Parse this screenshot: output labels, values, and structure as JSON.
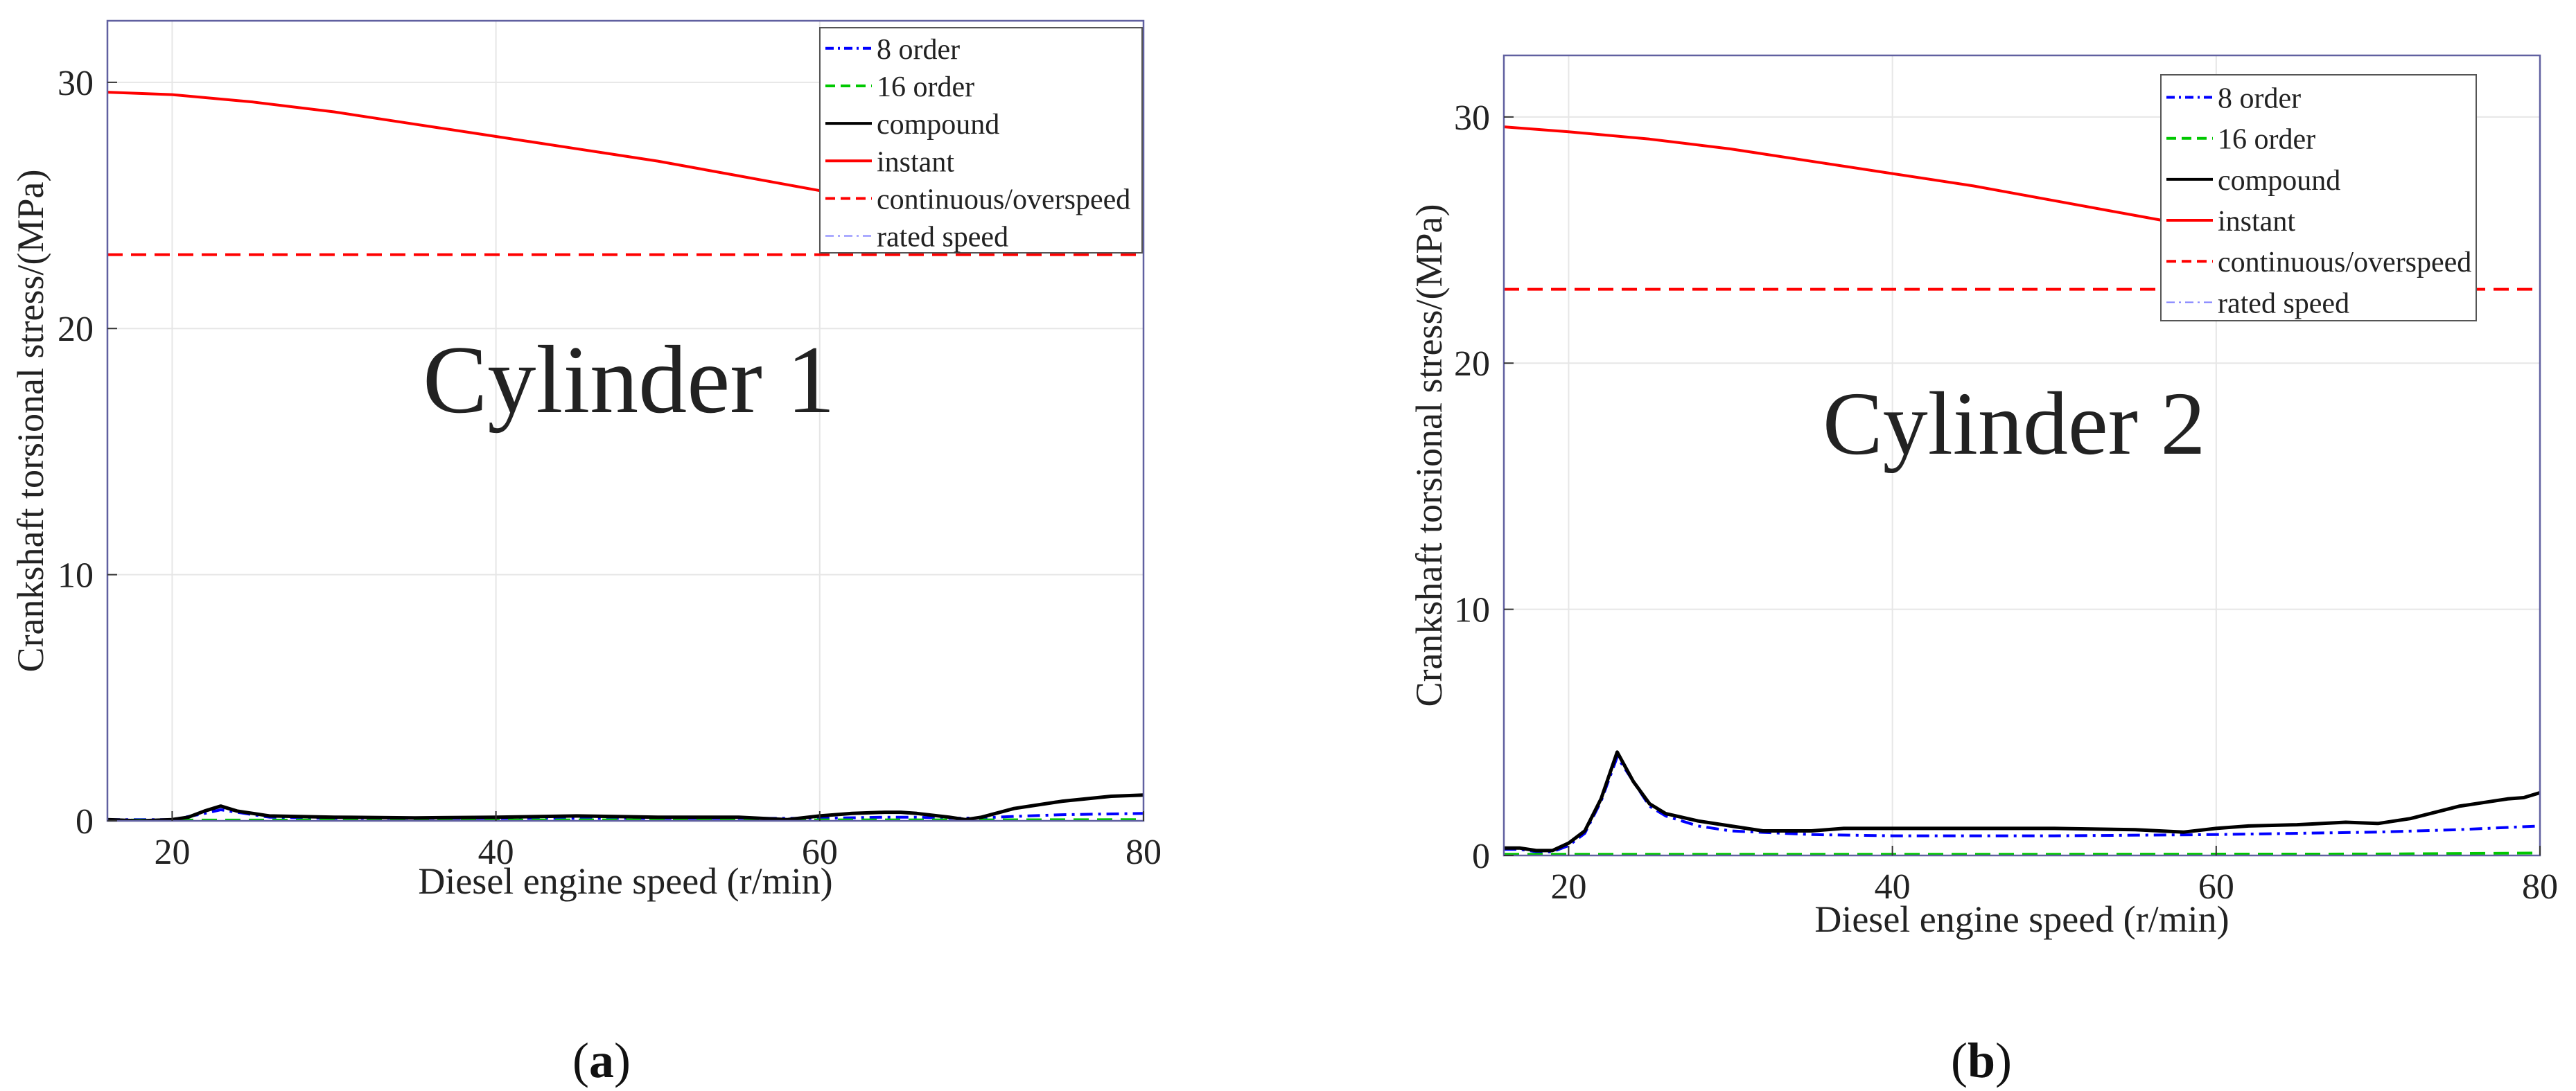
{
  "chart_data": [
    {
      "type": "line",
      "panel_label": "a",
      "annotation": "Cylinder 1",
      "xlabel": "Diesel engine speed (r/min)",
      "ylabel": "Crankshaft torsional stress/(MPa)",
      "xlim": [
        16,
        80
      ],
      "ylim": [
        0,
        32.5
      ],
      "xticks": [
        20,
        40,
        60,
        80
      ],
      "yticks": [
        0,
        10,
        20,
        30
      ],
      "grid": true,
      "legend_position": "top-right",
      "series": [
        {
          "name": "8 order",
          "color": "#0000ff",
          "dash": "dashdot",
          "x": [
            16,
            20,
            22,
            23,
            24,
            26,
            30,
            40,
            50,
            60,
            64,
            66,
            68,
            70,
            72,
            75,
            80
          ],
          "y": [
            0.05,
            0.05,
            0.3,
            0.45,
            0.35,
            0.15,
            0.1,
            0.1,
            0.1,
            0.1,
            0.15,
            0.15,
            0.1,
            0.12,
            0.18,
            0.25,
            0.3
          ]
        },
        {
          "name": "16 order",
          "color": "#00c800",
          "dash": "dashed",
          "x": [
            16,
            30,
            50,
            70,
            80
          ],
          "y": [
            0.03,
            0.03,
            0.04,
            0.04,
            0.05
          ]
        },
        {
          "name": "compound",
          "color": "#000000",
          "dash": "solid",
          "x": [
            16,
            18,
            20,
            21,
            22,
            23,
            24,
            26,
            30,
            35,
            40,
            45,
            50,
            55,
            58,
            60,
            62,
            64,
            65,
            66,
            68,
            69,
            70,
            72,
            75,
            78,
            80
          ],
          "y": [
            0.05,
            0.0,
            0.05,
            0.15,
            0.4,
            0.6,
            0.4,
            0.2,
            0.15,
            0.12,
            0.15,
            0.2,
            0.15,
            0.15,
            0.05,
            0.2,
            0.3,
            0.35,
            0.35,
            0.3,
            0.15,
            0.05,
            0.15,
            0.5,
            0.8,
            1.0,
            1.05
          ]
        },
        {
          "name": "instant",
          "color": "#ff0000",
          "dash": "solid",
          "x": [
            16,
            20,
            25,
            30,
            35,
            40,
            45,
            50,
            55,
            60,
            62
          ],
          "y": [
            29.6,
            29.5,
            29.2,
            28.8,
            28.3,
            27.8,
            27.3,
            26.8,
            26.2,
            25.6,
            25.3
          ]
        },
        {
          "name": "continuous/overspeed",
          "color": "#ff0000",
          "dash": "dashed",
          "x": [
            16,
            80
          ],
          "y": [
            23,
            23
          ]
        },
        {
          "name": "rated speed",
          "color": "#8080ff",
          "dash": "dashdot",
          "x": [],
          "y": []
        }
      ]
    },
    {
      "type": "line",
      "panel_label": "b",
      "annotation": "Cylinder 2",
      "xlabel": "Diesel engine speed (r/min)",
      "ylabel": "Crankshaft torsional stress/(MPa)",
      "xlim": [
        16,
        80
      ],
      "ylim": [
        0,
        32.5
      ],
      "xticks": [
        20,
        40,
        60,
        80
      ],
      "yticks": [
        0,
        10,
        20,
        30
      ],
      "grid": true,
      "legend_position": "top-right",
      "series": [
        {
          "name": "8 order",
          "color": "#0000ff",
          "dash": "dashdot",
          "x": [
            16,
            17,
            18,
            19,
            20,
            21,
            22,
            23,
            24,
            25,
            26,
            28,
            30,
            35,
            40,
            50,
            60,
            70,
            75,
            80
          ],
          "y": [
            0.25,
            0.25,
            0.15,
            0.15,
            0.4,
            0.9,
            2.2,
            4.0,
            3.0,
            2.0,
            1.6,
            1.2,
            1.0,
            0.85,
            0.8,
            0.8,
            0.85,
            0.95,
            1.05,
            1.2
          ]
        },
        {
          "name": "16 order",
          "color": "#00c800",
          "dash": "dashed",
          "x": [
            16,
            30,
            50,
            70,
            80
          ],
          "y": [
            0.05,
            0.05,
            0.05,
            0.06,
            0.1
          ]
        },
        {
          "name": "compound",
          "color": "#000000",
          "dash": "solid",
          "x": [
            16,
            17,
            18,
            19,
            20,
            21,
            22,
            23,
            24,
            25,
            26,
            28,
            30,
            32,
            35,
            37,
            40,
            45,
            50,
            55,
            58,
            60,
            62,
            65,
            68,
            70,
            72,
            75,
            78,
            79,
            80
          ],
          "y": [
            0.3,
            0.3,
            0.2,
            0.2,
            0.5,
            1.0,
            2.3,
            4.2,
            3.0,
            2.1,
            1.7,
            1.4,
            1.2,
            1.0,
            1.0,
            1.1,
            1.1,
            1.1,
            1.1,
            1.05,
            0.95,
            1.1,
            1.2,
            1.25,
            1.35,
            1.3,
            1.5,
            2.0,
            2.3,
            2.35,
            2.55
          ]
        },
        {
          "name": "instant",
          "color": "#ff0000",
          "dash": "solid",
          "x": [
            16,
            20,
            25,
            30,
            35,
            40,
            45,
            50,
            55,
            60
          ],
          "y": [
            29.6,
            29.4,
            29.1,
            28.7,
            28.2,
            27.7,
            27.2,
            26.6,
            26.0,
            25.4
          ]
        },
        {
          "name": "continuous/overspeed",
          "color": "#ff0000",
          "dash": "dashed",
          "x": [
            16,
            80
          ],
          "y": [
            23,
            23
          ]
        },
        {
          "name": "rated speed",
          "color": "#8080ff",
          "dash": "dashdot",
          "x": [],
          "y": []
        }
      ]
    }
  ]
}
